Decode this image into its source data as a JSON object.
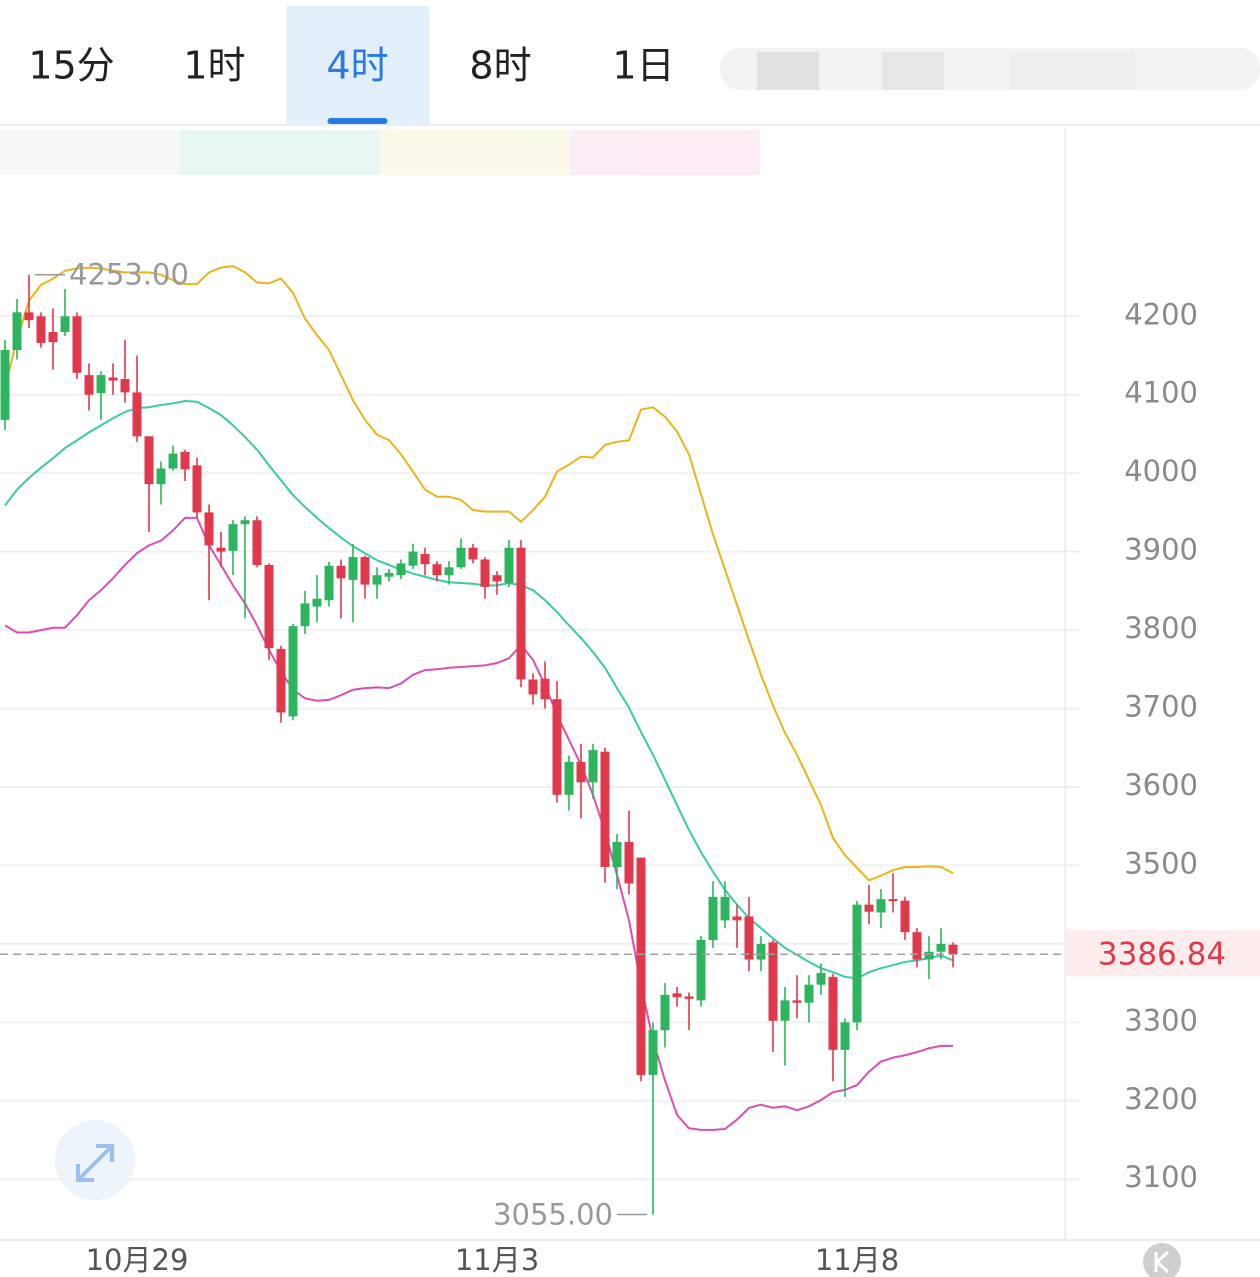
{
  "tabs": [
    "15分",
    "1时",
    "4时",
    "8时",
    "1日"
  ],
  "active_tab": 2,
  "chart_data": {
    "type": "candlestick",
    "categories": [
      null,
      null,
      null,
      null,
      null,
      null,
      null,
      null,
      null,
      null,
      null,
      "10月29",
      null,
      null,
      null,
      null,
      null,
      null,
      null,
      null,
      null,
      null,
      null,
      null,
      null,
      null,
      null,
      null,
      null,
      null,
      null,
      null,
      null,
      null,
      null,
      null,
      null,
      null,
      null,
      null,
      null,
      "11月3",
      null,
      null,
      null,
      null,
      null,
      null,
      null,
      null,
      null,
      null,
      null,
      null,
      null,
      null,
      null,
      null,
      null,
      null,
      null,
      null,
      null,
      null,
      null,
      null,
      null,
      null,
      null,
      null,
      null,
      "11月8",
      null,
      null,
      null,
      null,
      null,
      null,
      null,
      null
    ],
    "open": [
      4068,
      4157,
      4205,
      4200,
      4180,
      4180,
      4200,
      4125,
      4102,
      4122,
      4120,
      4103,
      4047,
      3986,
      4006,
      4027,
      4010,
      3950,
      3905,
      3901,
      3935,
      3940,
      3883,
      3776,
      3690,
      3805,
      3830,
      3838,
      3882,
      3864,
      3893,
      3858,
      3868,
      3870,
      3882,
      3897,
      3884,
      3870,
      3880,
      3905,
      3890,
      3870,
      3860,
      3905,
      3737,
      3738,
      3712,
      3590,
      3632,
      3606,
      3645,
      3498,
      3530,
      3510,
      3233,
      3290,
      3337,
      3333,
      3328,
      3405,
      3430,
      3435,
      3435,
      3380,
      3402,
      3302,
      3328,
      3325,
      3348,
      3358,
      3265,
      3300,
      3450,
      3440,
      3457,
      3455,
      3415,
      3380,
      3390,
      3399
    ],
    "high": [
      4170,
      4222,
      4253,
      4205,
      4210,
      4235,
      4205,
      4140,
      4130,
      4140,
      4170,
      4150,
      4047,
      4015,
      4035,
      4030,
      4020,
      3960,
      3925,
      3940,
      3945,
      3945,
      3885,
      3780,
      3808,
      3850,
      3870,
      3887,
      3890,
      3910,
      3895,
      3880,
      3878,
      3890,
      3910,
      3905,
      3888,
      3888,
      3917,
      3910,
      3893,
      3875,
      3915,
      3915,
      3745,
      3760,
      3735,
      3640,
      3655,
      3655,
      3650,
      3540,
      3570,
      3510,
      3300,
      3350,
      3345,
      3338,
      3410,
      3480,
      3480,
      3450,
      3460,
      3410,
      3405,
      3345,
      3360,
      3360,
      3375,
      3362,
      3305,
      3455,
      3475,
      3470,
      3490,
      3460,
      3420,
      3410,
      3420,
      3402
    ],
    "low": [
      4055,
      4145,
      4185,
      4160,
      4132,
      4175,
      4120,
      4080,
      4068,
      4100,
      4090,
      4040,
      3925,
      3960,
      4003,
      3990,
      3943,
      3838,
      3880,
      3870,
      3815,
      3880,
      3762,
      3682,
      3685,
      3795,
      3810,
      3830,
      3815,
      3810,
      3840,
      3840,
      3862,
      3865,
      3878,
      3870,
      3862,
      3858,
      3878,
      3885,
      3840,
      3845,
      3855,
      3727,
      3705,
      3700,
      3580,
      3570,
      3560,
      3585,
      3478,
      3470,
      3463,
      3225,
      3055,
      3268,
      3320,
      3290,
      3320,
      3395,
      3420,
      3395,
      3365,
      3365,
      3262,
      3245,
      3305,
      3300,
      3335,
      3225,
      3205,
      3290,
      3425,
      3420,
      3440,
      3405,
      3370,
      3355,
      3380,
      3370
    ],
    "close": [
      4157,
      4205,
      4195,
      4166,
      4167,
      4200,
      4128,
      4100,
      4125,
      4118,
      4103,
      4047,
      3986,
      4006,
      4025,
      4005,
      3950,
      3908,
      3900,
      3935,
      3940,
      3883,
      3777,
      3695,
      3805,
      3834,
      3840,
      3882,
      3866,
      3893,
      3858,
      3870,
      3873,
      3885,
      3900,
      3884,
      3870,
      3880,
      3905,
      3890,
      3855,
      3862,
      3905,
      3737,
      3718,
      3712,
      3590,
      3632,
      3606,
      3647,
      3498,
      3530,
      3477,
      3233,
      3290,
      3335,
      3332,
      3330,
      3405,
      3460,
      3460,
      3430,
      3380,
      3400,
      3302,
      3328,
      3325,
      3348,
      3363,
      3265,
      3300,
      3450,
      3441,
      3457,
      3455,
      3415,
      3380,
      3390,
      3400,
      3386.84
    ],
    "up_color": "#2db55d",
    "down_color": "#e0394b",
    "lines": [
      {
        "color": "#e9b41c",
        "values": [
          4110,
          4170,
          4220,
          4240,
          4248,
          4258,
          4261,
          4262,
          4261,
          4258,
          4256,
          4256,
          4256,
          4253,
          4246,
          4241,
          4241,
          4256,
          4262,
          4264,
          4256,
          4243,
          4242,
          4248,
          4230,
          4197,
          4176,
          4157,
          4125,
          4093,
          4068,
          4049,
          4042,
          4024,
          4002,
          3979,
          3970,
          3970,
          3966,
          3953,
          3951,
          3951,
          3951,
          3938,
          3953,
          3970,
          4002,
          4011,
          4021,
          4020,
          4036,
          4040,
          4042,
          4081,
          4084,
          4072,
          4053,
          4024,
          3973,
          3922,
          3877,
          3832,
          3787,
          3743,
          3704,
          3669,
          3641,
          3609,
          3577,
          3535,
          3513,
          3497,
          3481,
          3487,
          3494,
          3498,
          3498,
          3499,
          3498,
          3490
        ]
      },
      {
        "color": "#3cc9a5",
        "values": [
          3959,
          3979,
          3994,
          4007,
          4019,
          4032,
          4042,
          4052,
          4061,
          4070,
          4078,
          4083,
          4084,
          4087,
          4089,
          4092,
          4091,
          4083,
          4074,
          4061,
          4046,
          4030,
          4010,
          3991,
          3972,
          3957,
          3943,
          3930,
          3918,
          3907,
          3898,
          3889,
          3883,
          3877,
          3872,
          3868,
          3864,
          3861,
          3860,
          3859,
          3857,
          3857,
          3860,
          3857,
          3851,
          3838,
          3823,
          3806,
          3790,
          3772,
          3752,
          3726,
          3701,
          3670,
          3641,
          3609,
          3577,
          3545,
          3517,
          3492,
          3469,
          3450,
          3433,
          3420,
          3407,
          3395,
          3386,
          3377,
          3369,
          3364,
          3358,
          3356,
          3364,
          3369,
          3373,
          3377,
          3379,
          3382,
          3385,
          3379
        ]
      },
      {
        "color": "#d94fb4",
        "values": [
          3806,
          3797,
          3797,
          3800,
          3803,
          3803,
          3819,
          3838,
          3851,
          3866,
          3883,
          3898,
          3908,
          3914,
          3927,
          3943,
          3943,
          3908,
          3883,
          3857,
          3834,
          3806,
          3775,
          3747,
          3724,
          3713,
          3710,
          3711,
          3717,
          3724,
          3726,
          3727,
          3726,
          3732,
          3743,
          3749,
          3750,
          3752,
          3753,
          3754,
          3755,
          3758,
          3764,
          3781,
          3762,
          3730,
          3692,
          3660,
          3628,
          3590,
          3543,
          3488,
          3430,
          3348,
          3277,
          3226,
          3182,
          3165,
          3163,
          3163,
          3164,
          3176,
          3191,
          3195,
          3191,
          3193,
          3188,
          3193,
          3201,
          3211,
          3214,
          3220,
          3237,
          3250,
          3255,
          3258,
          3262,
          3267,
          3270,
          3270
        ]
      }
    ],
    "annotations": [
      {
        "value": 4253,
        "label": "4253.00"
      },
      {
        "value": 3055,
        "label": "3055.00"
      }
    ],
    "last_price": 3386.84,
    "ylim": [
      3020,
      4440
    ],
    "yticks": [
      3100,
      3200,
      3300,
      3400,
      3500,
      3600,
      3700,
      3800,
      3900,
      4000,
      4100,
      4200
    ],
    "grid": true
  }
}
